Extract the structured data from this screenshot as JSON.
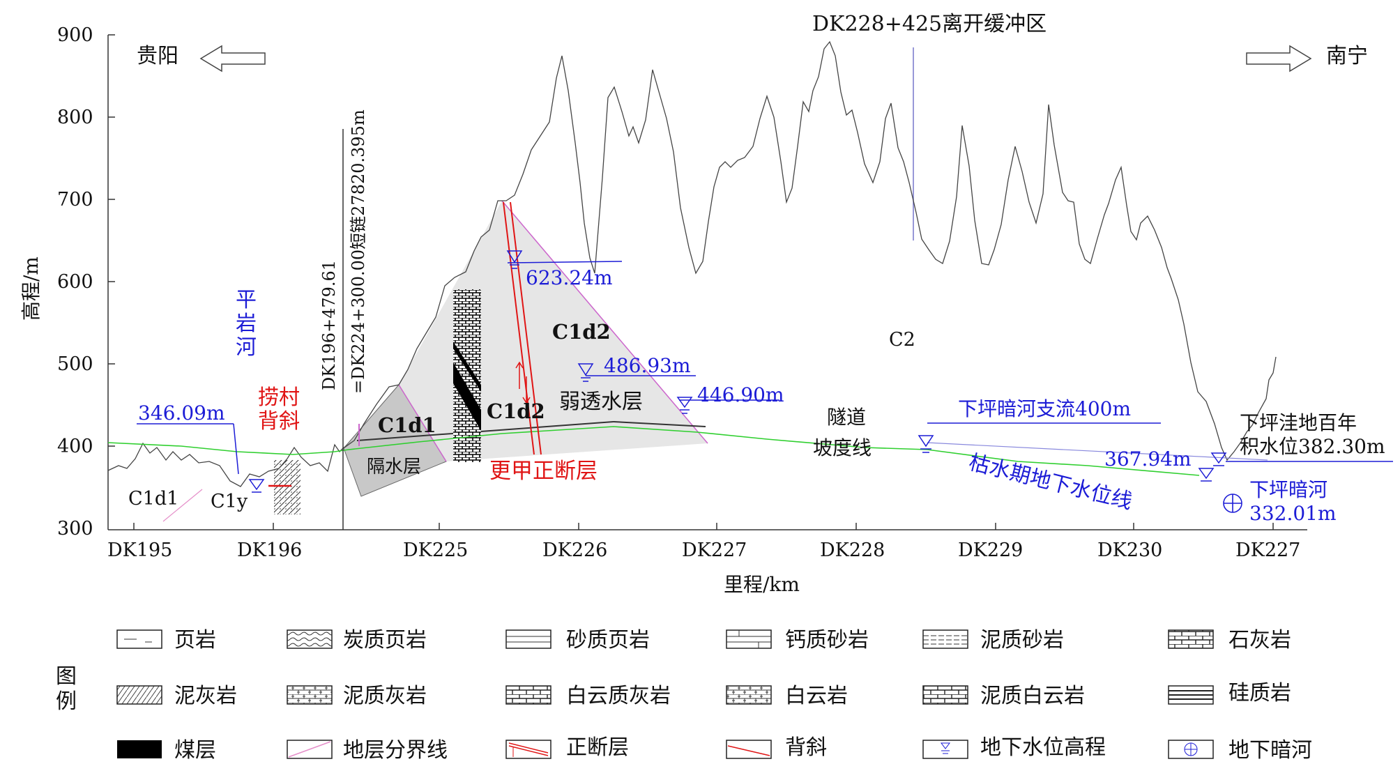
{
  "header": {
    "title": "DK228+425离开缓冲区",
    "dir_left": "贵阳",
    "dir_right": "南宁"
  },
  "axes": {
    "ylabel": "高程/m",
    "xlabel": "里程/km",
    "y_ticks": [
      "900",
      "800",
      "700",
      "600",
      "500",
      "400",
      "300"
    ],
    "x_ticks": [
      "DK195",
      "DK196",
      "DK225",
      "DK226",
      "DK227",
      "DK228",
      "DK229",
      "DK230",
      "DK227"
    ]
  },
  "chain_break": {
    "line1": "DK196+479.61",
    "line2": "=DK224+300.00短链27820.395m"
  },
  "water_levels": {
    "w1": "346.09m",
    "w2": "623.24m",
    "w3": "486.93m",
    "w4": "446.90m",
    "w5": "下坪暗河支流400m",
    "w6": "367.94m",
    "w7_line1": "下坪洼地百年",
    "w7_line2": "积水位382.30m",
    "river_line1": "下坪暗河",
    "river_line2": "332.01m",
    "dry_season": "枯水期地下水位线"
  },
  "features": {
    "pingyan_river": [
      "平",
      "岩",
      "河"
    ],
    "anticline": [
      "捞村",
      "背斜"
    ],
    "fault": "更甲正断层",
    "aquitard": "隔水层",
    "weak_aquifer": "弱透水层",
    "tunnel_grade": [
      "隧道",
      "坡度线"
    ]
  },
  "strata": {
    "c1d1_left": "C1d1",
    "c1y": "C1y",
    "c1d1_mid": "C1d1",
    "c1d2_a": "C1d2",
    "c1d2_b": "C1d2",
    "c2": "C2"
  },
  "legend": {
    "title": [
      "图",
      "例"
    ],
    "items": [
      {
        "label": "页岩",
        "icon": "shale-icon"
      },
      {
        "label": "炭质页岩",
        "icon": "carbonaceous-shale-icon"
      },
      {
        "label": "砂质页岩",
        "icon": "sandy-shale-icon"
      },
      {
        "label": "钙质砂岩",
        "icon": "calcareous-sandstone-icon"
      },
      {
        "label": "泥质砂岩",
        "icon": "argillaceous-sandstone-icon"
      },
      {
        "label": "石灰岩",
        "icon": "limestone-icon"
      },
      {
        "label": "泥灰岩",
        "icon": "marl-icon"
      },
      {
        "label": "泥质灰岩",
        "icon": "argillaceous-limestone-icon"
      },
      {
        "label": "白云质灰岩",
        "icon": "dolomitic-limestone-icon"
      },
      {
        "label": "白云岩",
        "icon": "dolomite-icon"
      },
      {
        "label": "泥质白云岩",
        "icon": "argillaceous-dolomite-icon"
      },
      {
        "label": "硅质岩",
        "icon": "siliceous-rock-icon"
      },
      {
        "label": "煤层",
        "icon": "coal-seam-icon"
      },
      {
        "label": "地层分界线",
        "icon": "stratum-boundary-icon"
      },
      {
        "label": "正断层",
        "icon": "normal-fault-icon"
      },
      {
        "label": "背斜",
        "icon": "anticline-icon"
      },
      {
        "label": "地下水位高程",
        "icon": "groundwater-level-icon"
      },
      {
        "label": "地下暗河",
        "icon": "underground-river-icon"
      }
    ]
  },
  "colors": {
    "water_blue": "#1c1cd6",
    "fault_red": "#e01515",
    "green_line": "#2fcf2f",
    "aquitard_fill": "#c8c8c8",
    "weak_aquifer_fill": "#e6e6e6",
    "boundary_pink": "#e58fc9"
  }
}
